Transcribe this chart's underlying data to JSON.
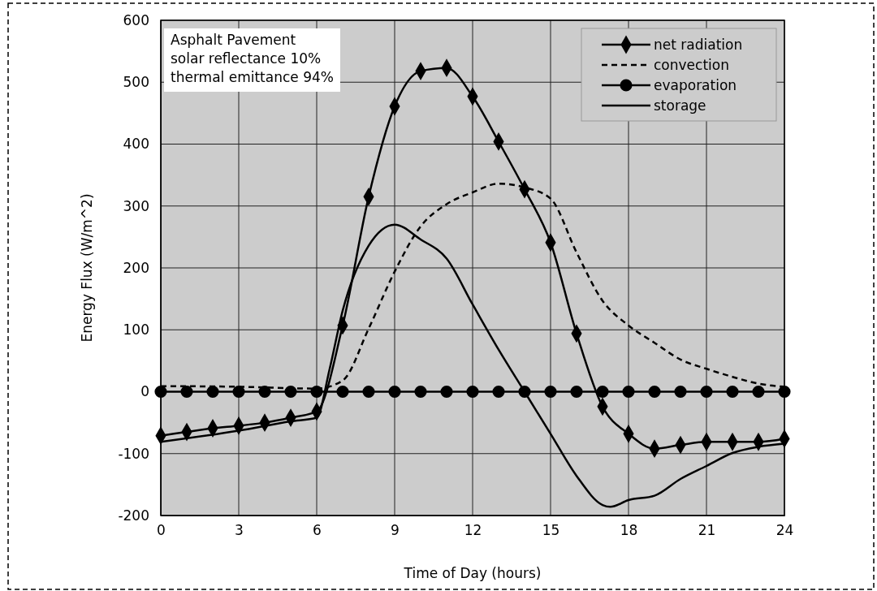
{
  "chart_data": {
    "type": "line",
    "xlabel": "Time of Day (hours)",
    "ylabel": "Energy Flux (W/m^2)",
    "xlim": [
      0,
      24
    ],
    "xticks": [
      0,
      3,
      6,
      9,
      12,
      15,
      18,
      21,
      24
    ],
    "ylim": [
      -200,
      600
    ],
    "yticks": [
      -200,
      -100,
      0,
      100,
      200,
      300,
      400,
      500,
      600
    ],
    "grid": true,
    "legend": "top right",
    "annotations": [
      "Asphalt Pavement\nsolar reflectance 10%\nthermal emittance 94%"
    ],
    "series": [
      {
        "name": "net radiation",
        "color": "#000000",
        "marker": "diamond",
        "line_style": "solid",
        "x": [
          0,
          1,
          2,
          3,
          4,
          5,
          6,
          7,
          8,
          9,
          10,
          11,
          12,
          13,
          14,
          15,
          16,
          17,
          18,
          19,
          20,
          21,
          22,
          23,
          24
        ],
        "values": [
          -71,
          -65,
          -59,
          -55,
          -50,
          -42,
          -32,
          107,
          315,
          461,
          518,
          523,
          477,
          404,
          327,
          241,
          94,
          -24,
          -68,
          -92,
          -86,
          -81,
          -81,
          -81,
          -76
        ]
      },
      {
        "name": "convection",
        "color": "#000000",
        "marker": "none",
        "line_style": "dashed",
        "x": [
          0,
          3,
          6,
          7,
          8,
          9,
          10,
          11,
          12,
          13,
          14,
          15,
          16,
          17,
          18,
          19,
          20,
          21,
          22,
          23,
          24
        ],
        "values": [
          9,
          8,
          5,
          18,
          102,
          194,
          267,
          303,
          322,
          336,
          330,
          312,
          225,
          147,
          107,
          79,
          52,
          37,
          24,
          13,
          8
        ]
      },
      {
        "name": "evaporation",
        "color": "#000000",
        "marker": "circle",
        "line_style": "solid",
        "x": [
          0,
          1,
          2,
          3,
          4,
          5,
          6,
          7,
          8,
          9,
          10,
          11,
          12,
          13,
          14,
          15,
          16,
          17,
          18,
          19,
          20,
          21,
          22,
          23,
          24
        ],
        "values": [
          0,
          0,
          0,
          0,
          0,
          0,
          0,
          0,
          0,
          0,
          0,
          0,
          0,
          0,
          0,
          0,
          0,
          0,
          0,
          0,
          0,
          0,
          0,
          0,
          0
        ]
      },
      {
        "name": "storage",
        "color": "#000000",
        "marker": "none",
        "line_style": "solid",
        "x": [
          0,
          3,
          5,
          6,
          6.5,
          7,
          8,
          9,
          10,
          11,
          12,
          13,
          14,
          15,
          16,
          17,
          17.3,
          18,
          19,
          20,
          21,
          22,
          23,
          24
        ],
        "values": [
          -81,
          -63,
          -48,
          -42,
          37,
          131,
          236,
          270,
          246,
          215,
          141,
          68,
          0,
          -68,
          -136,
          -183,
          -186,
          -175,
          -168,
          -141,
          -120,
          -99,
          -89,
          -84
        ]
      }
    ]
  }
}
